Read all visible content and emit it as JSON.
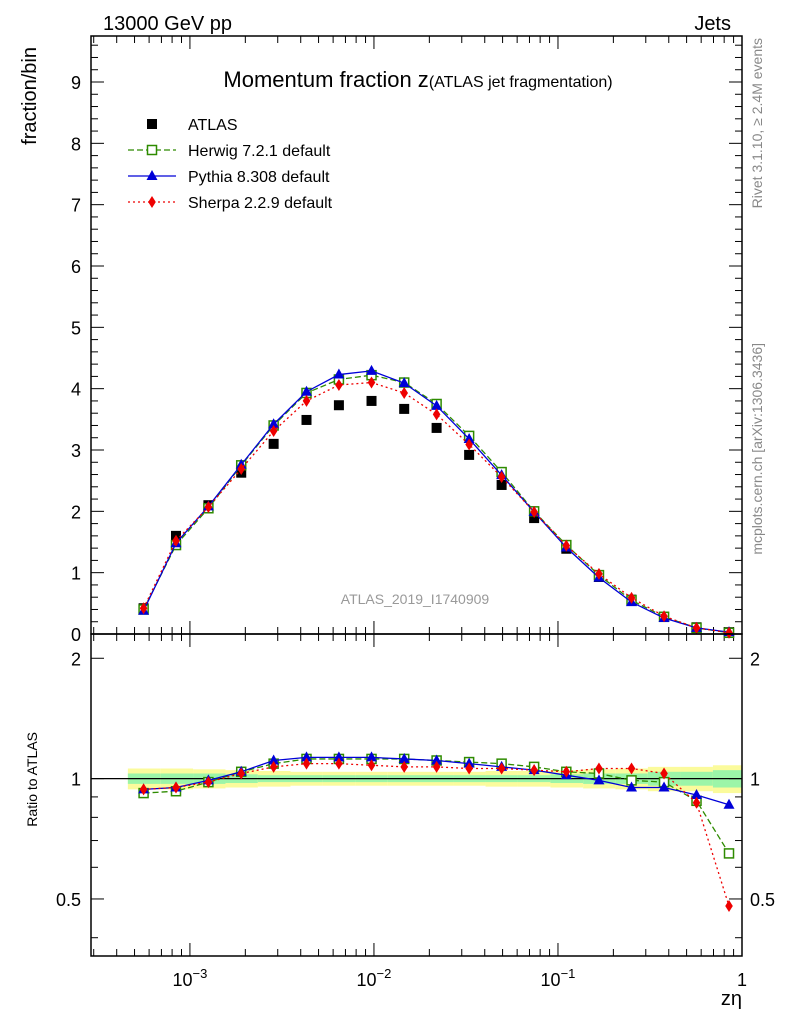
{
  "header": {
    "left": "13000 GeV pp",
    "right": "Jets"
  },
  "side": {
    "rivet": "Rivet 3.1.10, ≥ 2.4M events",
    "source": "mcplots.cern.ch [arXiv:1306.3436]"
  },
  "watermark": "ATLAS_2019_I1740909",
  "chart_data": {
    "type": "scatter",
    "title_main": "Momentum fraction z",
    "title_sub": "(ATLAS jet fragmentation)",
    "xlabel": "zη",
    "ylabel": "fraction/bin",
    "ratio_ylabel": "Ratio to ATLAS",
    "xscale": "log",
    "xlim": [
      0.00029,
      1.0
    ],
    "ylim": [
      0,
      9.75
    ],
    "ratio_ylim": [
      0.36,
      2.3
    ],
    "x_ticklabels": [
      {
        "x": 0.001,
        "label": "10",
        "exp": "−3"
      },
      {
        "x": 0.01,
        "label": "10",
        "exp": "−2"
      },
      {
        "x": 0.1,
        "label": "10",
        "exp": "−1"
      },
      {
        "x": 1,
        "label": "1",
        "exp": ""
      }
    ],
    "y_ticks": [
      0,
      1,
      2,
      3,
      4,
      5,
      6,
      7,
      8,
      9
    ],
    "ratio_ticks": [
      0.5,
      1,
      2
    ],
    "legend_position": "top-left",
    "x": [
      0.00056,
      0.00084,
      0.00126,
      0.0019,
      0.00285,
      0.0043,
      0.00645,
      0.0097,
      0.0146,
      0.0219,
      0.0329,
      0.0494,
      0.0742,
      0.111,
      0.167,
      0.251,
      0.377,
      0.566,
      0.85
    ],
    "band_edges": [
      0.00046,
      0.00069,
      0.00104,
      0.00156,
      0.00234,
      0.00352,
      0.00528,
      0.0079,
      0.0119,
      0.0179,
      0.0269,
      0.0404,
      0.0606,
      0.091,
      0.137,
      0.205,
      0.308,
      0.463,
      0.695,
      1.0
    ],
    "band_inner": [
      0.03,
      0.03,
      0.03,
      0.025,
      0.02,
      0.02,
      0.02,
      0.02,
      0.02,
      0.02,
      0.02,
      0.02,
      0.02,
      0.025,
      0.03,
      0.03,
      0.04,
      0.04,
      0.05
    ],
    "band_outer": [
      0.06,
      0.06,
      0.055,
      0.05,
      0.045,
      0.04,
      0.04,
      0.04,
      0.04,
      0.04,
      0.04,
      0.045,
      0.045,
      0.05,
      0.055,
      0.06,
      0.07,
      0.07,
      0.08
    ],
    "series": [
      {
        "name": "ATLAS",
        "color": "#000000",
        "marker": "square-filled",
        "line": "none",
        "values": [
          0.42,
          1.6,
          2.1,
          2.63,
          3.1,
          3.49,
          3.73,
          3.8,
          3.67,
          3.36,
          2.92,
          2.43,
          1.89,
          1.39,
          0.93,
          0.56,
          0.28,
          0.11,
          0.03
        ]
      },
      {
        "name": "Herwig 7.2.1 default",
        "color": "#2e8b00",
        "marker": "square-open",
        "line": "dashed",
        "values": [
          0.4,
          1.45,
          2.05,
          2.75,
          3.4,
          3.93,
          4.15,
          4.22,
          4.1,
          3.75,
          3.23,
          2.64,
          2.0,
          1.45,
          0.96,
          0.55,
          0.28,
          0.1,
          0.02
        ],
        "ratio": [
          0.92,
          0.93,
          0.98,
          1.04,
          1.09,
          1.12,
          1.12,
          1.12,
          1.12,
          1.11,
          1.1,
          1.09,
          1.07,
          1.04,
          1.03,
          0.99,
          0.98,
          0.88,
          0.65
        ]
      },
      {
        "name": "Pythia 8.308 default",
        "color": "#0000d8",
        "marker": "triangle-filled",
        "line": "solid",
        "values": [
          0.38,
          1.48,
          2.08,
          2.76,
          3.42,
          3.95,
          4.23,
          4.29,
          4.09,
          3.72,
          3.18,
          2.59,
          1.99,
          1.41,
          0.92,
          0.52,
          0.26,
          0.1,
          0.03
        ],
        "ratio": [
          0.94,
          0.95,
          0.99,
          1.04,
          1.11,
          1.13,
          1.13,
          1.13,
          1.12,
          1.11,
          1.09,
          1.07,
          1.05,
          1.02,
          0.99,
          0.95,
          0.95,
          0.91,
          0.86
        ]
      },
      {
        "name": "Sherpa 2.2.9 default",
        "color": "#ee0000",
        "marker": "diamond-filled",
        "line": "dotted",
        "values": [
          0.42,
          1.52,
          2.07,
          2.69,
          3.31,
          3.8,
          4.06,
          4.1,
          3.93,
          3.58,
          3.09,
          2.56,
          1.99,
          1.44,
          0.98,
          0.59,
          0.29,
          0.1,
          0.02
        ],
        "ratio": [
          0.94,
          0.95,
          0.98,
          1.03,
          1.07,
          1.09,
          1.09,
          1.08,
          1.07,
          1.07,
          1.06,
          1.06,
          1.05,
          1.04,
          1.06,
          1.06,
          1.03,
          0.87,
          0.48
        ]
      }
    ]
  }
}
